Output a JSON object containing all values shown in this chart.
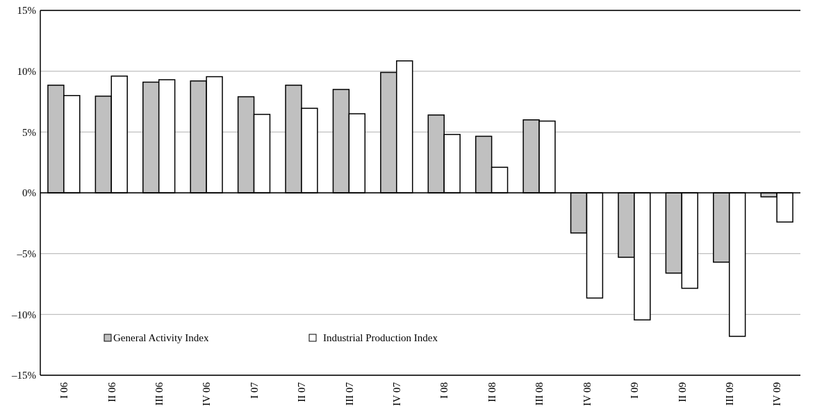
{
  "chart_data": {
    "type": "bar",
    "categories": [
      "I 06",
      "II 06",
      "III 06",
      "IV 06",
      "I 07",
      "II 07",
      "III 07",
      "IV 07",
      "I 08",
      "II 08",
      "III 08",
      "IV 08",
      "I 09",
      "II 09",
      "III 09",
      "IV 09"
    ],
    "series": [
      {
        "name": "General Activity Index",
        "color": "#c0c0c0",
        "values": [
          8.85,
          7.95,
          9.1,
          9.2,
          7.9,
          8.85,
          8.5,
          9.9,
          6.4,
          4.65,
          6.0,
          -3.3,
          -5.3,
          -6.6,
          -5.7,
          -0.33
        ]
      },
      {
        "name": "Industrial Production Index",
        "color": "#ffffff",
        "values": [
          8.0,
          9.6,
          9.3,
          9.55,
          6.45,
          6.95,
          6.5,
          10.85,
          4.8,
          2.1,
          5.9,
          -8.65,
          -10.45,
          -7.85,
          -11.8,
          -2.4
        ]
      }
    ],
    "ylim": [
      -15,
      15
    ],
    "yticks": [
      {
        "value": -15,
        "label": "–15%"
      },
      {
        "value": -10,
        "label": "–10%"
      },
      {
        "value": -5,
        "label": "–5%"
      },
      {
        "value": 0,
        "label": "0%"
      },
      {
        "value": 5,
        "label": "5%"
      },
      {
        "value": 10,
        "label": "10%"
      },
      {
        "value": 15,
        "label": "15%"
      }
    ],
    "grid": "y",
    "legend": "bottom left"
  }
}
